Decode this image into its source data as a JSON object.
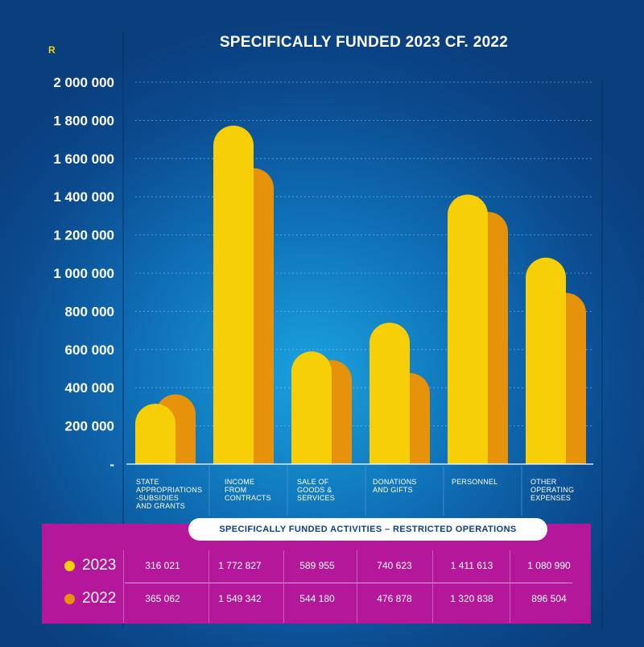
{
  "chart_data": {
    "type": "bar",
    "title": "SPECIFICALLY FUNDED 2023 CF. 2022",
    "unit_label": "R",
    "categories": [
      [
        "STATE",
        "APPROPRIATIONS",
        "-SUBSIDIES",
        "AND GRANTS"
      ],
      [
        "INCOME",
        "FROM",
        "CONTRACTS"
      ],
      [
        "SALE OF",
        "GOODS &",
        "SERVICES"
      ],
      [
        "DONATIONS",
        "AND GIFTS"
      ],
      [
        "PERSONNEL"
      ],
      [
        "OTHER",
        "OPERATING",
        "EXPENSES"
      ]
    ],
    "series": [
      {
        "name": "2023",
        "color": "#f7cf09",
        "values": [
          316021,
          1772827,
          589955,
          740623,
          1411613,
          1080990
        ]
      },
      {
        "name": "2022",
        "color": "#e6920a",
        "values": [
          365062,
          1549342,
          544180,
          476878,
          1320838,
          896504
        ]
      }
    ],
    "ylim": [
      0,
      2000000
    ],
    "yticks": [
      {
        "value": 0,
        "label": "-"
      },
      {
        "value": 200000,
        "label": "200 000"
      },
      {
        "value": 400000,
        "label": "400 000"
      },
      {
        "value": 600000,
        "label": "600 000"
      },
      {
        "value": 800000,
        "label": "800 000"
      },
      {
        "value": 1000000,
        "label": "1 000 000"
      },
      {
        "value": 1200000,
        "label": "1 200 000"
      },
      {
        "value": 1400000,
        "label": "1 400 000"
      },
      {
        "value": 1600000,
        "label": "1 600 000"
      },
      {
        "value": 1800000,
        "label": "1 800 000"
      },
      {
        "value": 2000000,
        "label": "2 000 000"
      }
    ],
    "grid": true
  },
  "table": {
    "header": "SPECIFICALLY FUNDED ACTIVITIES – RESTRICTED OPERATIONS",
    "rows": [
      {
        "year": "2023",
        "color": "#f7cf09",
        "cells": [
          "316 021",
          "1 772 827",
          "589 955",
          "740 623",
          "1 411 613",
          "1 080 990"
        ]
      },
      {
        "year": "2022",
        "color": "#e6920a",
        "cells": [
          "365 062",
          "1 549 342",
          "544 180",
          "476 878",
          "1 320 838",
          "896 504"
        ]
      }
    ]
  }
}
